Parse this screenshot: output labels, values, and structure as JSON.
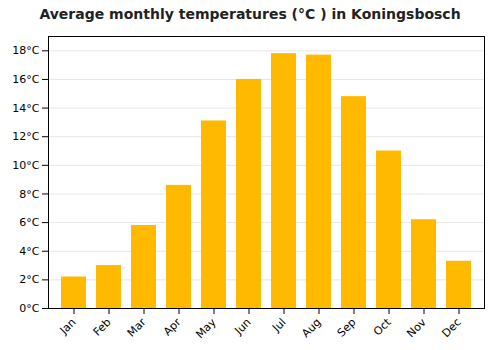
{
  "chart_data": {
    "type": "bar",
    "title": "Average monthly temperatures (°C ) in Koningsbosch",
    "categories": [
      "Jan",
      "Feb",
      "Mar",
      "Apr",
      "May",
      "Jun",
      "Jul",
      "Aug",
      "Sep",
      "Oct",
      "Nov",
      "Dec"
    ],
    "values": [
      2.2,
      3.0,
      5.8,
      8.6,
      13.1,
      16.0,
      17.8,
      17.7,
      14.8,
      11.0,
      6.2,
      3.3
    ],
    "color": "#FFBA00",
    "ylim": [
      0,
      19
    ],
    "yticks": [
      {
        "value": 0,
        "label": "0°C"
      },
      {
        "value": 2,
        "label": "2°C"
      },
      {
        "value": 4,
        "label": "4°C"
      },
      {
        "value": 6,
        "label": "6°C"
      },
      {
        "value": 8,
        "label": "8°C"
      },
      {
        "value": 10,
        "label": "10°C"
      },
      {
        "value": 12,
        "label": "12°C"
      },
      {
        "value": 14,
        "label": "14°C"
      },
      {
        "value": 16,
        "label": "16°C"
      },
      {
        "value": 18,
        "label": "18°C"
      }
    ],
    "grid": true
  }
}
